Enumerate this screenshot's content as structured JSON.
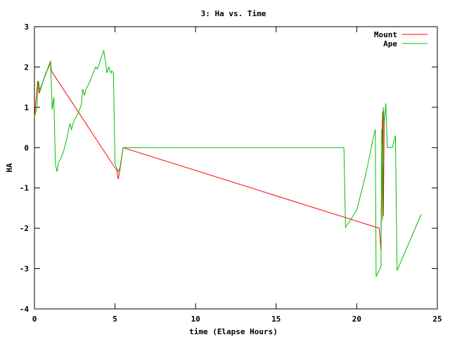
{
  "chart_data": {
    "type": "line",
    "title": "3: Ha vs. Time",
    "xlabel": "time (Elapse Hours)",
    "ylabel": "HA",
    "xlim": [
      0,
      25
    ],
    "ylim": [
      -4,
      3
    ],
    "xticks": [
      0,
      5,
      10,
      15,
      20,
      25
    ],
    "yticks": [
      -4,
      -3,
      -2,
      -1,
      0,
      1,
      2,
      3
    ],
    "grid": false,
    "legend_position": "top-right",
    "series": [
      {
        "name": "Mount",
        "color": "#ff0000",
        "x": [
          0.0,
          0.2,
          0.3,
          0.4,
          1.0,
          1.05,
          5.0,
          5.1,
          5.2,
          5.3,
          5.5,
          21.4,
          21.5,
          21.55,
          21.6,
          21.65,
          21.7
        ],
        "y": [
          0.75,
          1.65,
          1.35,
          1.5,
          2.15,
          1.9,
          -0.5,
          -0.55,
          -0.78,
          -0.55,
          0.0,
          -2.0,
          -2.55,
          -0.3,
          0.9,
          -1.7,
          0.7
        ]
      },
      {
        "name": "Ape",
        "color": "#00c000",
        "x": [
          0.0,
          0.15,
          0.25,
          0.35,
          0.5,
          0.7,
          0.9,
          1.0,
          1.1,
          1.2,
          1.3,
          1.4,
          1.5,
          1.6,
          1.8,
          2.0,
          2.2,
          2.3,
          2.4,
          2.5,
          2.7,
          2.9,
          3.0,
          3.1,
          3.2,
          3.4,
          3.6,
          3.8,
          3.9,
          4.0,
          4.1,
          4.3,
          4.4,
          4.5,
          4.6,
          4.65,
          4.7,
          4.75,
          4.8,
          4.9,
          5.0,
          5.1,
          5.2,
          5.3,
          5.5,
          19.2,
          19.3,
          20.0,
          20.5,
          20.7,
          21.0,
          21.15,
          21.2,
          21.5,
          21.55,
          21.6,
          21.65,
          21.7,
          21.8,
          21.9,
          22.2,
          22.4,
          22.5,
          24.0
        ],
        "y": [
          0.75,
          1.0,
          1.65,
          1.4,
          1.6,
          1.85,
          2.0,
          2.15,
          0.95,
          1.25,
          -0.4,
          -0.6,
          -0.35,
          -0.3,
          -0.1,
          0.2,
          0.6,
          0.45,
          0.6,
          0.7,
          0.85,
          1.05,
          1.45,
          1.3,
          1.45,
          1.6,
          1.8,
          2.0,
          1.95,
          2.05,
          2.2,
          2.4,
          2.15,
          1.85,
          2.0,
          1.95,
          1.9,
          1.85,
          1.9,
          1.85,
          -0.4,
          -0.5,
          -0.6,
          -0.5,
          0.0,
          0.0,
          -1.98,
          -1.55,
          -0.75,
          -0.4,
          0.2,
          0.45,
          -3.2,
          -2.95,
          0.45,
          -1.8,
          1.0,
          0.6,
          1.1,
          0.0,
          0.0,
          0.3,
          -3.05,
          -1.65
        ]
      }
    ]
  }
}
